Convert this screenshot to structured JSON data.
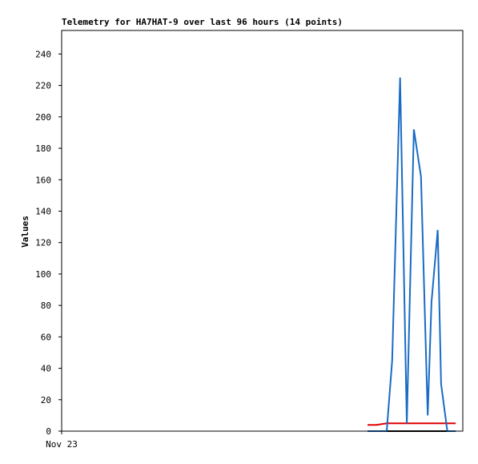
{
  "chart_data": {
    "type": "line",
    "title": "Telemetry for HA7HAT-9 over last 96 hours (14 points)",
    "y_label": "Values",
    "x": [
      73.2,
      75.3,
      77.8,
      79.1,
      81.0,
      82.6,
      84.3,
      86.0,
      87.6,
      88.5,
      90.0,
      90.8,
      92.3,
      94.3
    ],
    "xlim": [
      0,
      96
    ],
    "xticks": [
      {
        "value": 0,
        "label": "Nov 23"
      }
    ],
    "ylim": [
      0,
      255
    ],
    "yticks": [
      0,
      20,
      40,
      60,
      80,
      100,
      120,
      140,
      160,
      180,
      200,
      220,
      240
    ],
    "series": [
      {
        "color": "#000000",
        "values": [
          0,
          0,
          0,
          0,
          0,
          0,
          0,
          0,
          0,
          0,
          0,
          0,
          0,
          0
        ]
      },
      {
        "color": "#e00000",
        "values": [
          4,
          4,
          5,
          5,
          5,
          5,
          5,
          5,
          5,
          5,
          5,
          5,
          5,
          5
        ]
      },
      {
        "color": "#1a6bc4",
        "values": [
          0,
          0,
          0,
          45,
          225,
          5,
          192,
          162,
          10,
          82,
          128,
          30,
          0,
          0
        ]
      }
    ]
  }
}
